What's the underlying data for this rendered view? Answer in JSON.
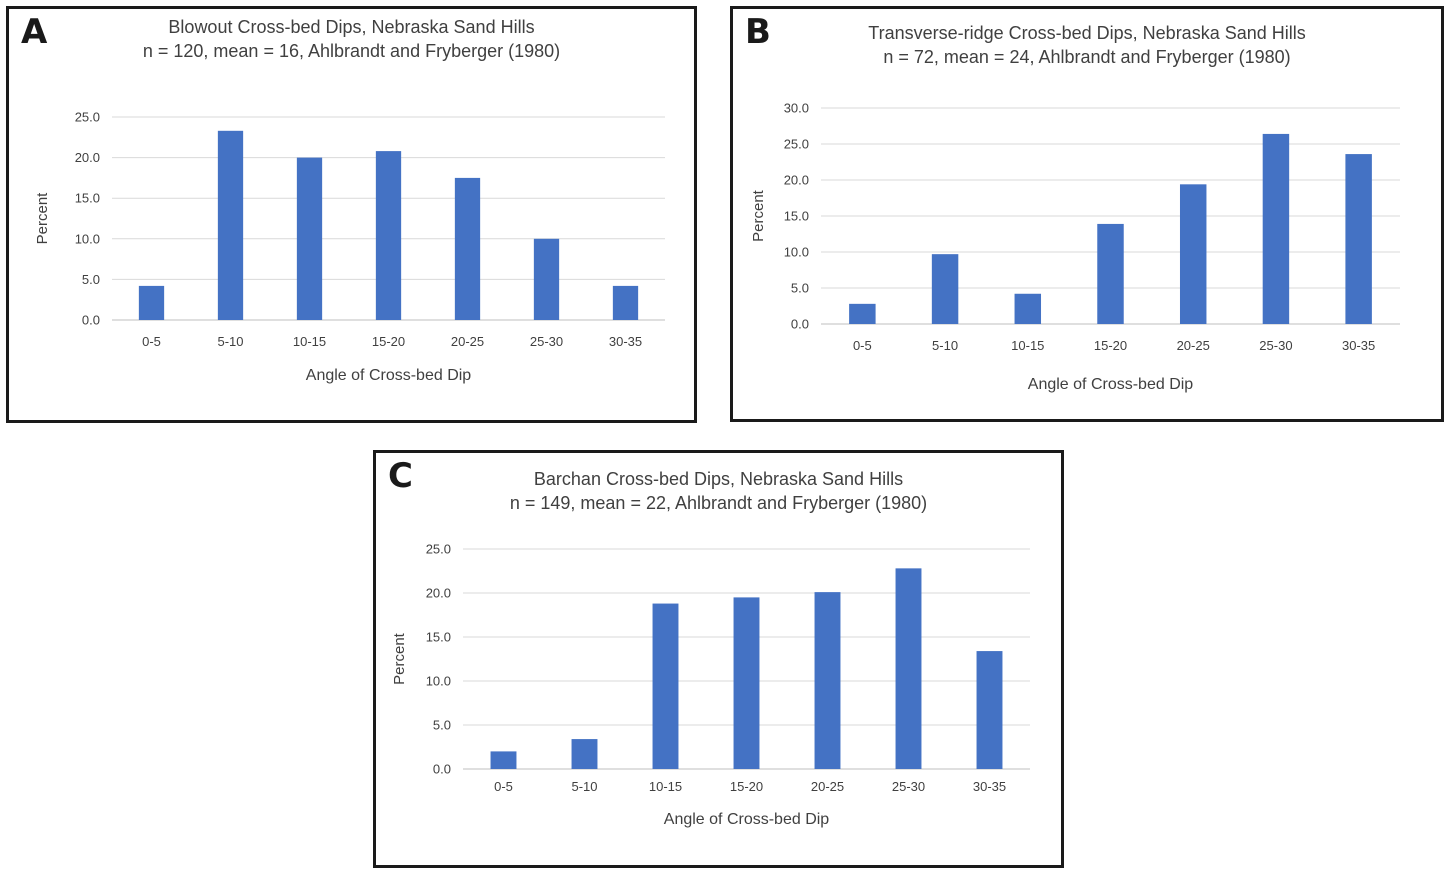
{
  "chart_data": [
    {
      "panel": "A",
      "type": "bar",
      "title": "Blowout Cross-bed Dips, Nebraska Sand Hills",
      "subtitle": "n = 120, mean = 16, Ahlbrandt and Fryberger (1980)",
      "xlabel": "Angle of Cross-bed Dip",
      "ylabel": "Percent",
      "categories": [
        "0-5",
        "5-10",
        "10-15",
        "15-20",
        "20-25",
        "25-30",
        "30-35"
      ],
      "values": [
        4.2,
        23.3,
        20.0,
        20.8,
        17.5,
        10.0,
        4.2
      ],
      "ylim": [
        0,
        25
      ],
      "ystep": 5,
      "ytick_labels": [
        "0.0",
        "5.0",
        "10.0",
        "15.0",
        "20.0",
        "25.0"
      ],
      "grid": true,
      "legend": "none",
      "bar_color": "#4472c4"
    },
    {
      "panel": "B",
      "type": "bar",
      "title": "Transverse-ridge Cross-bed Dips, Nebraska Sand Hills",
      "subtitle": "n = 72, mean = 24, Ahlbrandt and Fryberger (1980)",
      "xlabel": "Angle of Cross-bed Dip",
      "ylabel": "Percent",
      "categories": [
        "0-5",
        "5-10",
        "10-15",
        "15-20",
        "20-25",
        "25-30",
        "30-35"
      ],
      "values": [
        2.8,
        9.7,
        4.2,
        13.9,
        19.4,
        26.4,
        23.6
      ],
      "ylim": [
        0,
        30
      ],
      "ystep": 5,
      "ytick_labels": [
        "0.0",
        "5.0",
        "10.0",
        "15.0",
        "20.0",
        "25.0",
        "30.0"
      ],
      "grid": true,
      "legend": "none",
      "bar_color": "#4472c4"
    },
    {
      "panel": "C",
      "type": "bar",
      "title": "Barchan Cross-bed Dips, Nebraska Sand Hills",
      "subtitle": "n = 149, mean = 22, Ahlbrandt and Fryberger (1980)",
      "xlabel": "Angle of Cross-bed Dip",
      "ylabel": "Percent",
      "categories": [
        "0-5",
        "5-10",
        "10-15",
        "15-20",
        "20-25",
        "25-30",
        "30-35"
      ],
      "values": [
        2.0,
        3.4,
        18.8,
        19.5,
        20.1,
        22.8,
        13.4
      ],
      "ylim": [
        0,
        25
      ],
      "ystep": 5,
      "ytick_labels": [
        "0.0",
        "5.0",
        "10.0",
        "15.0",
        "20.0",
        "25.0"
      ],
      "grid": true,
      "legend": "none",
      "bar_color": "#4472c4"
    }
  ]
}
